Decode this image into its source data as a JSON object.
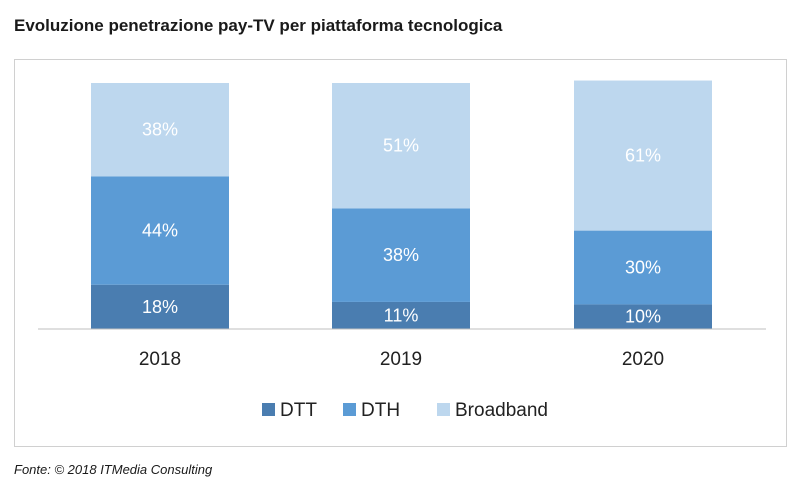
{
  "page": {
    "title": "Evoluzione penetrazione pay-TV per piattaforma tecnologica",
    "source": "Fonte: © 2018 ITMedia Consulting"
  },
  "chart_data": {
    "type": "bar",
    "stacked": true,
    "title": "Evoluzione penetrazione pay-TV per piattaforma tecnologica",
    "xlabel": "",
    "ylabel": "",
    "ylim": [
      0,
      100
    ],
    "grid": false,
    "legend_position": "bottom",
    "categories": [
      "2018",
      "2019",
      "2020"
    ],
    "series": [
      {
        "name": "DTT",
        "values": [
          18,
          11,
          10
        ],
        "labels": [
          "18%",
          "11%",
          "10%"
        ],
        "color": "#4a7db0"
      },
      {
        "name": "DTH",
        "values": [
          44,
          38,
          30
        ],
        "labels": [
          "44%",
          "38%",
          "30%"
        ],
        "color": "#5b9bd5"
      },
      {
        "name": "Broadband",
        "values": [
          38,
          51,
          61
        ],
        "labels": [
          "38%",
          "51%",
          "61%"
        ],
        "color": "#bdd7ee"
      }
    ]
  }
}
